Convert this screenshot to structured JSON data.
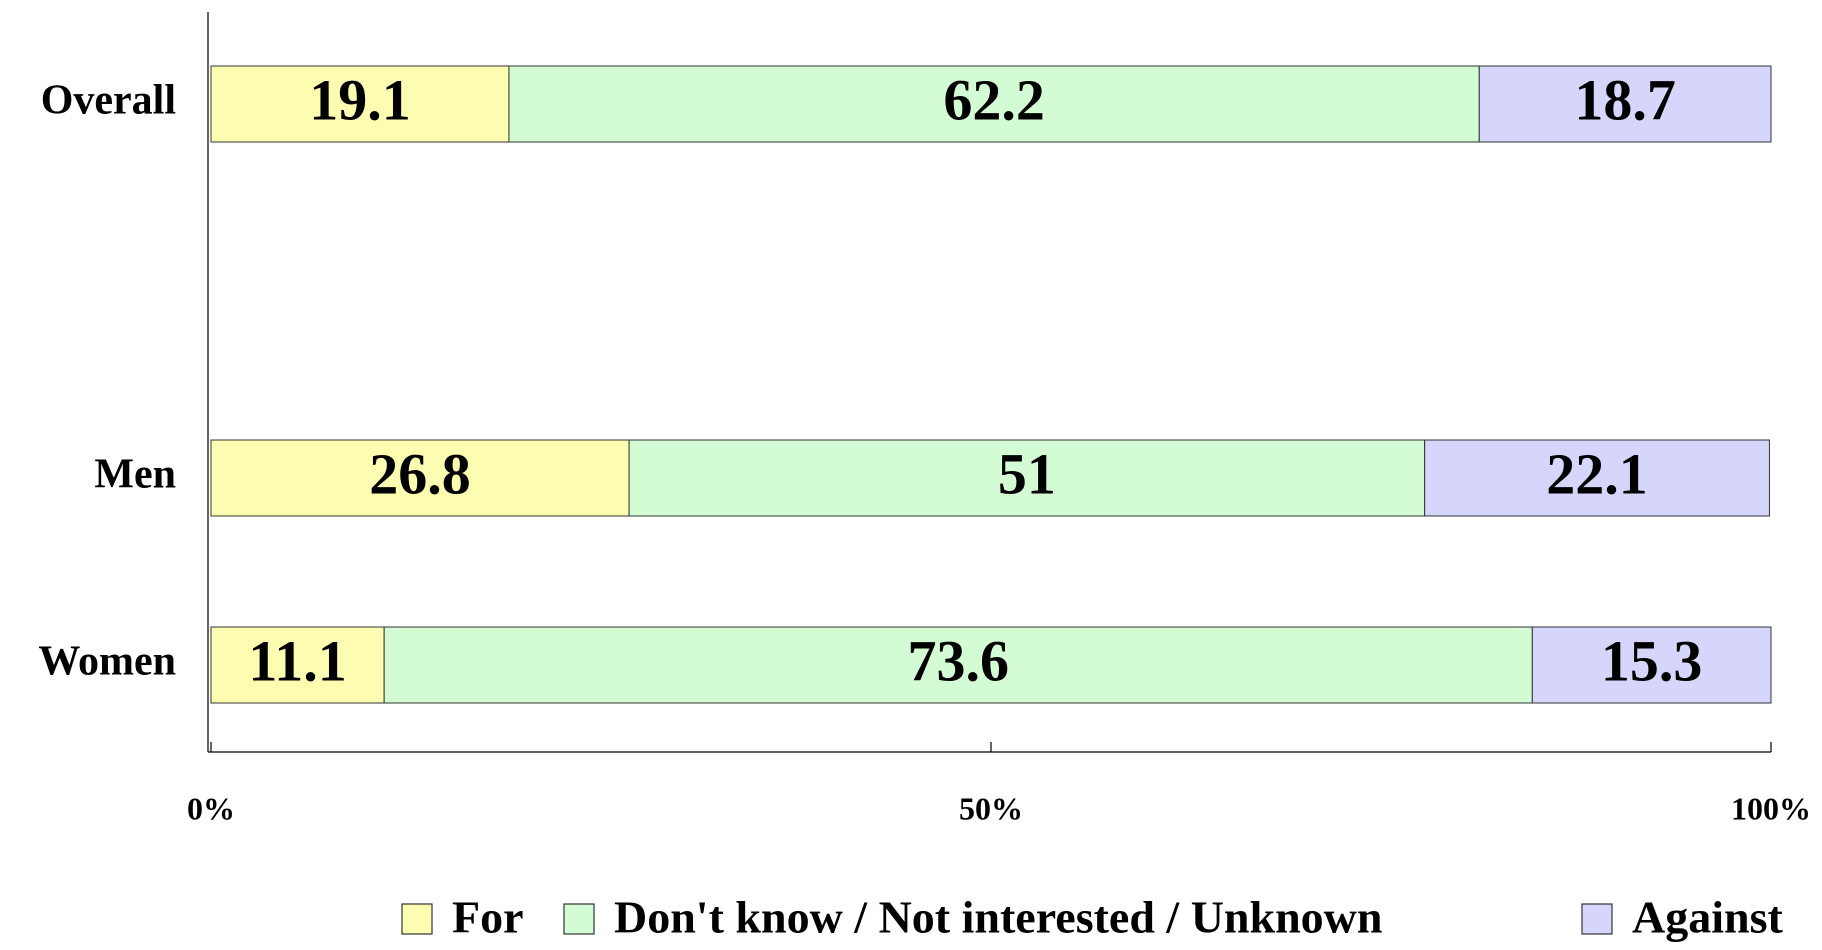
{
  "chart_data": {
    "type": "stacked-bar-horizontal",
    "categories": [
      "Overall",
      null,
      "Men",
      "Women"
    ],
    "category_colors": [
      "#000000",
      "#000000",
      "#000000",
      "#f05a1e"
    ],
    "series": [
      {
        "name": "For",
        "color": "#fdfdb2",
        "values": [
          19.1,
          null,
          26.8,
          11.1
        ]
      },
      {
        "name": "Don't know / Not interested / Unknown",
        "color": "#d4fcd4",
        "values": [
          62.2,
          null,
          51,
          73.6
        ]
      },
      {
        "name": "Against",
        "color": "#d6d6fc",
        "values": [
          18.7,
          null,
          22.1,
          15.3
        ]
      }
    ],
    "xlim": [
      0,
      100
    ],
    "xticks": [
      {
        "value": 0,
        "label": "0%"
      },
      {
        "value": 50,
        "label": "50%"
      },
      {
        "value": 100,
        "label": "100%"
      }
    ],
    "legend": "bottom"
  }
}
